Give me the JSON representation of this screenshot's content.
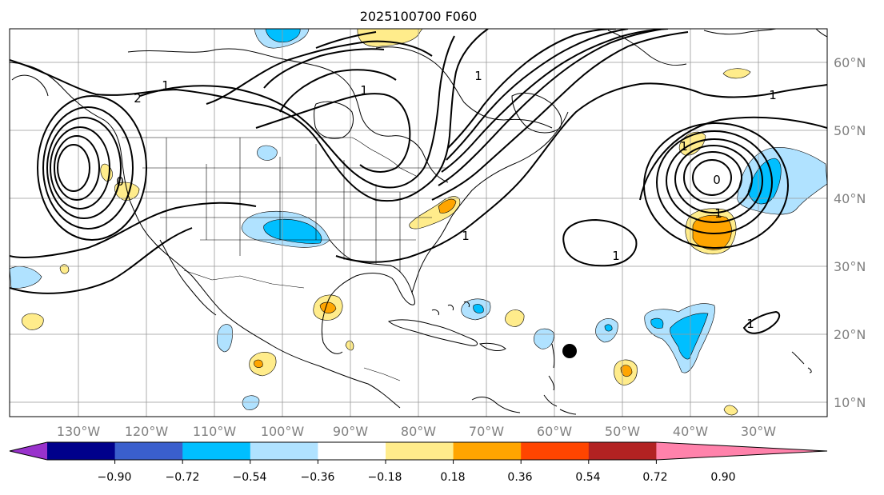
{
  "title": "2025100700 F060",
  "map": {
    "lon_labels": [
      "130°W",
      "120°W",
      "110°W",
      "100°W",
      "90°W",
      "80°W",
      "70°W",
      "60°W",
      "50°W",
      "40°W",
      "30°W"
    ],
    "lat_labels": [
      "60°N",
      "50°N",
      "40°N",
      "30°N",
      "20°N",
      "10°N"
    ],
    "contour_labels": [
      "1",
      "2",
      "1",
      "1",
      "1",
      "1",
      "1",
      "1",
      "1",
      "1"
    ],
    "low_center_labels": [
      "0",
      "0"
    ]
  },
  "colorbar": {
    "colors": [
      "#9932cc",
      "#00008b",
      "#3a5fcd",
      "#00bfff",
      "#b0e2ff",
      "#ffffff",
      "#ffec8b",
      "#ffa500",
      "#ff4500",
      "#b22222",
      "#ff82ab"
    ],
    "tick_labels": [
      "−0.90",
      "−0.72",
      "−0.54",
      "−0.36",
      "−0.18",
      "0.18",
      "0.36",
      "0.54",
      "0.72",
      "0.90"
    ]
  }
}
